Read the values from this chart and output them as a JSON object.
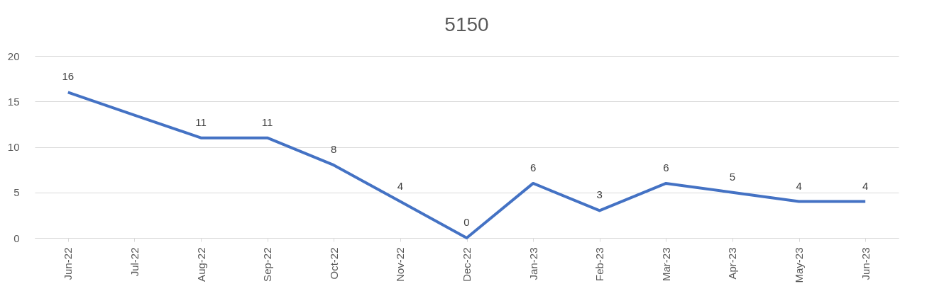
{
  "chart_data": {
    "type": "line",
    "title": "5150",
    "categories": [
      "Jun-22",
      "Jul-22",
      "Aug-22",
      "Sep-22",
      "Oct-22",
      "Nov-22",
      "Dec-22",
      "Jan-23",
      "Feb-23",
      "Mar-23",
      "Apr-23",
      "May-23",
      "Jun-23"
    ],
    "series": [
      {
        "color": "#4472c4",
        "values": [
          16,
          13.5,
          11,
          11,
          8,
          4,
          0,
          6,
          3,
          6,
          5,
          4,
          4
        ],
        "value_labels": [
          "16",
          null,
          "11",
          "11",
          "8",
          "4",
          "0",
          "6",
          "3",
          "6",
          "5",
          "4",
          "4"
        ]
      }
    ],
    "ylim": [
      0,
      20
    ],
    "yticks": [
      0,
      5,
      10,
      15,
      20
    ],
    "grid": "y",
    "legend": false,
    "marker": "none",
    "line_style": "solid"
  }
}
